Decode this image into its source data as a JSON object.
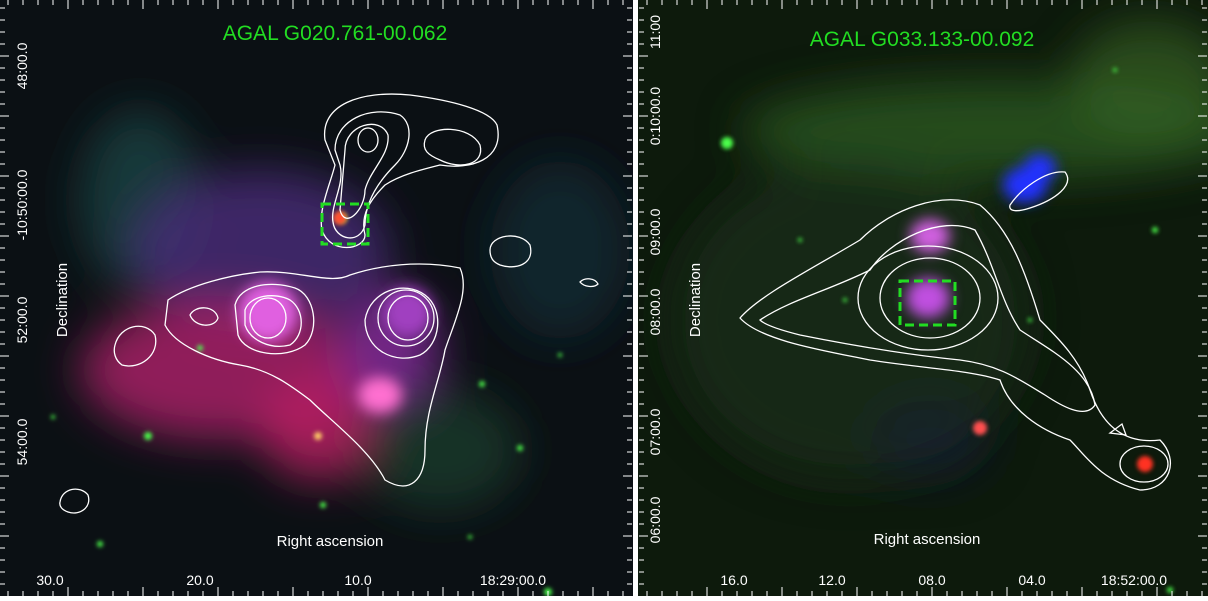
{
  "panels": [
    {
      "title": "AGAL G020.761-00.062",
      "x_axis_label": "Right ascension",
      "y_axis_label": "Declination",
      "x_ticks": [
        "30.0",
        "20.0",
        "10.0",
        "18:29:00.0"
      ],
      "y_ticks": [
        "48:00.0",
        "-10:50:00.0",
        "52:00.0",
        "54:00.0"
      ]
    },
    {
      "title": "AGAL G033.133-00.092",
      "x_axis_label": "Right ascension",
      "y_axis_label": "Declination",
      "x_ticks": [
        "16.0",
        "12.0",
        "08.0",
        "04.0",
        "18:52:00.0"
      ],
      "y_ticks": [
        "11:00",
        "0:10:00.0",
        "09:00.0",
        "08:00.0",
        "07:00.0",
        "06:00.0"
      ]
    }
  ]
}
